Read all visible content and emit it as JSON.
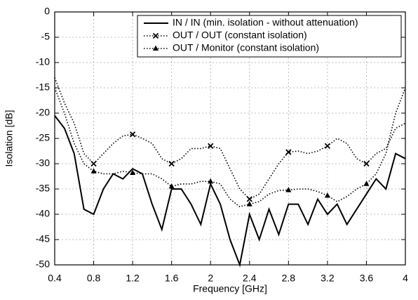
{
  "chart_data": {
    "type": "line",
    "x_label": "Frequency [GHz]",
    "y_label": "Isolation [dB]",
    "x": [
      0.4,
      0.5,
      0.6,
      0.7,
      0.8,
      0.9,
      1.0,
      1.1,
      1.2,
      1.3,
      1.4,
      1.5,
      1.6,
      1.7,
      1.8,
      1.9,
      2.0,
      2.1,
      2.2,
      2.3,
      2.4,
      2.5,
      2.6,
      2.7,
      2.8,
      2.9,
      3.0,
      3.1,
      3.2,
      3.3,
      3.4,
      3.5,
      3.6,
      3.7,
      3.8,
      3.9,
      4.0
    ],
    "series": [
      {
        "name": "IN / IN (min. isolation - without attenuation)",
        "color": "#000000",
        "dash": "solid",
        "marker": "none",
        "values": [
          -20.5,
          -23,
          -28,
          -39,
          -40,
          -35,
          -32,
          -33,
          -31,
          -32,
          -38,
          -43,
          -35,
          -35,
          -38,
          -42,
          -34,
          -38,
          -45,
          -50,
          -40,
          -45,
          -39,
          -44,
          -38,
          -38,
          -42,
          -37,
          -40,
          -38,
          -42,
          -39,
          -36,
          -33,
          -35,
          -28,
          -29
        ]
      },
      {
        "name": "OUT / OUT (constant isolation)",
        "color": "#000000",
        "dash": "dotted",
        "marker": "x",
        "values": [
          -13,
          -18,
          -22,
          -28,
          -30,
          -28,
          -26,
          -24.5,
          -24.2,
          -25,
          -26,
          -29,
          -30,
          -29,
          -27,
          -27,
          -26.5,
          -27,
          -31,
          -35,
          -37,
          -36,
          -33,
          -30,
          -27.7,
          -27.5,
          -28,
          -27.5,
          -26.5,
          -25,
          -26,
          -29,
          -30,
          -28,
          -27,
          -23,
          -22
        ]
      },
      {
        "name": "OUT / Monitor (constant isolation)",
        "color": "#000000",
        "dash": "dotted",
        "marker": "triangle",
        "values": [
          -15,
          -20,
          -26,
          -30,
          -31.5,
          -32,
          -32,
          -31.5,
          -31.8,
          -32,
          -32,
          -33,
          -34.5,
          -34,
          -34,
          -33.5,
          -33.5,
          -34,
          -37,
          -38.5,
          -38,
          -37.5,
          -36,
          -35.3,
          -35.2,
          -35,
          -35,
          -35.5,
          -36.3,
          -37.5,
          -36.5,
          -35,
          -34,
          -32,
          -28,
          -20,
          -15
        ]
      }
    ],
    "xlim": [
      0.4,
      4
    ],
    "ylim": [
      -50,
      0
    ],
    "xticks": [
      0.4,
      0.8,
      1.2,
      1.6,
      2,
      2.4,
      2.8,
      3.2,
      3.6,
      4
    ],
    "yticks": [
      0,
      -5,
      -10,
      -15,
      -20,
      -25,
      -30,
      -35,
      -40,
      -45,
      -50
    ],
    "grid": true,
    "legend": "top-right"
  }
}
